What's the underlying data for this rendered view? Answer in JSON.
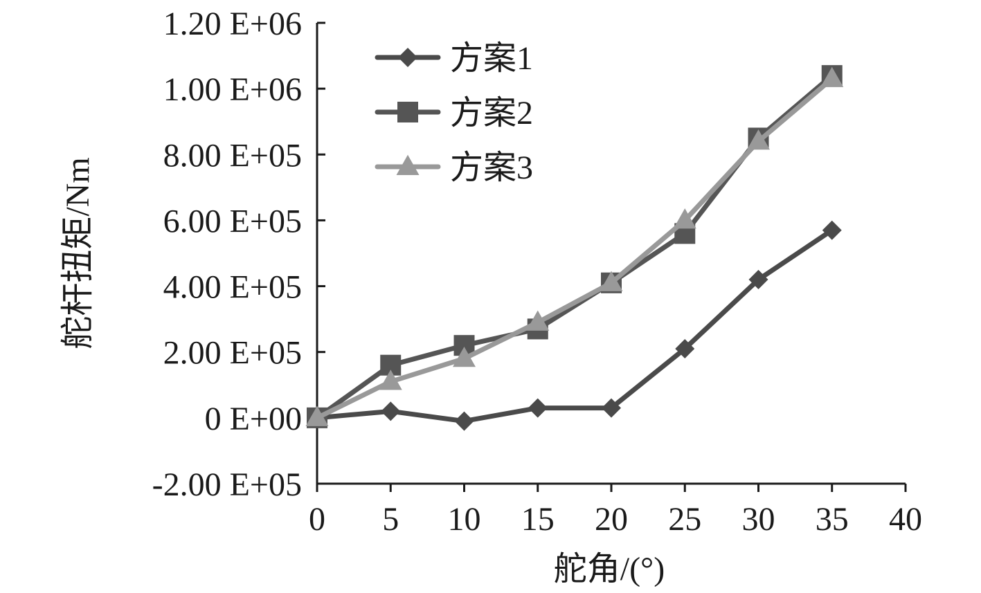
{
  "chart_data": {
    "type": "line",
    "title": "",
    "xlabel": "舵角/(°)",
    "ylabel": "舵杆扭矩/Nm",
    "xlim": [
      0,
      40
    ],
    "ylim": [
      -200000,
      1200000
    ],
    "x_ticks": [
      0,
      5,
      10,
      15,
      20,
      25,
      30,
      35,
      40
    ],
    "x_tick_labels": [
      "0",
      "5",
      "10",
      "15",
      "20",
      "25",
      "30",
      "35",
      "40"
    ],
    "y_ticks": [
      -200000,
      0,
      200000,
      400000,
      600000,
      800000,
      1000000,
      1200000
    ],
    "y_tick_labels": [
      "-2.00 E+05",
      "0 E+00",
      "2.00 E+05",
      "4.00 E+05",
      "6.00 E+05",
      "8.00 E+05",
      "1.00 E+06",
      "1.20 E+06"
    ],
    "grid": false,
    "legend_position": "top-left",
    "x": [
      0,
      5,
      10,
      15,
      20,
      25,
      30,
      35
    ],
    "series": [
      {
        "name": "方案1",
        "marker": "diamond",
        "color": "#4a4a4a",
        "values": [
          0,
          20000,
          -10000,
          30000,
          30000,
          210000,
          420000,
          570000
        ]
      },
      {
        "name": "方案2",
        "marker": "square",
        "color": "#555555",
        "values": [
          0,
          160000,
          220000,
          270000,
          410000,
          560000,
          850000,
          1040000
        ]
      },
      {
        "name": "方案3",
        "marker": "triangle",
        "color": "#999999",
        "values": [
          0,
          110000,
          180000,
          290000,
          410000,
          600000,
          840000,
          1030000
        ]
      }
    ]
  }
}
